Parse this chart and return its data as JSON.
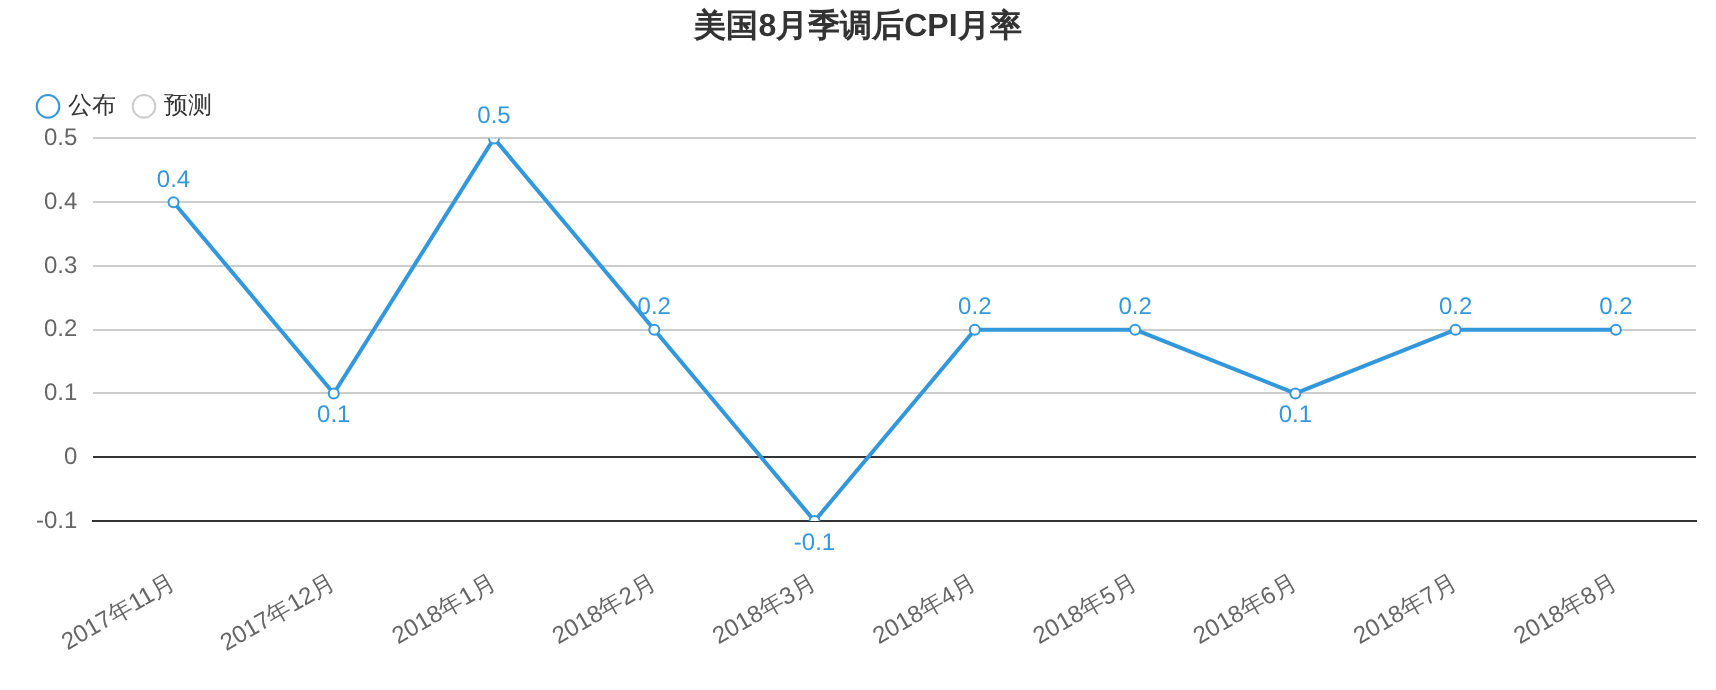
{
  "chart_data": {
    "type": "line",
    "title": "美国8月季调后CPI月率",
    "categories": [
      "2017年11月",
      "2017年12月",
      "2018年1月",
      "2018年2月",
      "2018年3月",
      "2018年4月",
      "2018年5月",
      "2018年6月",
      "2018年7月",
      "2018年8月"
    ],
    "series": [
      {
        "name": "公布",
        "color": "#3398db",
        "values": [
          0.4,
          0.1,
          0.5,
          0.2,
          -0.1,
          0.2,
          0.2,
          0.1,
          0.2,
          0.2
        ]
      },
      {
        "name": "预测",
        "color": "#cccccc",
        "values": [
          null,
          null,
          null,
          null,
          null,
          null,
          null,
          null,
          null,
          null
        ]
      }
    ],
    "ylim": [
      -0.1,
      0.5
    ],
    "yticks": [
      -0.1,
      0,
      0.1,
      0.2,
      0.3,
      0.4,
      0.5
    ],
    "grid": "y",
    "legend": "top left",
    "marker": "circle",
    "line_style": "solid",
    "data_labels": true
  }
}
